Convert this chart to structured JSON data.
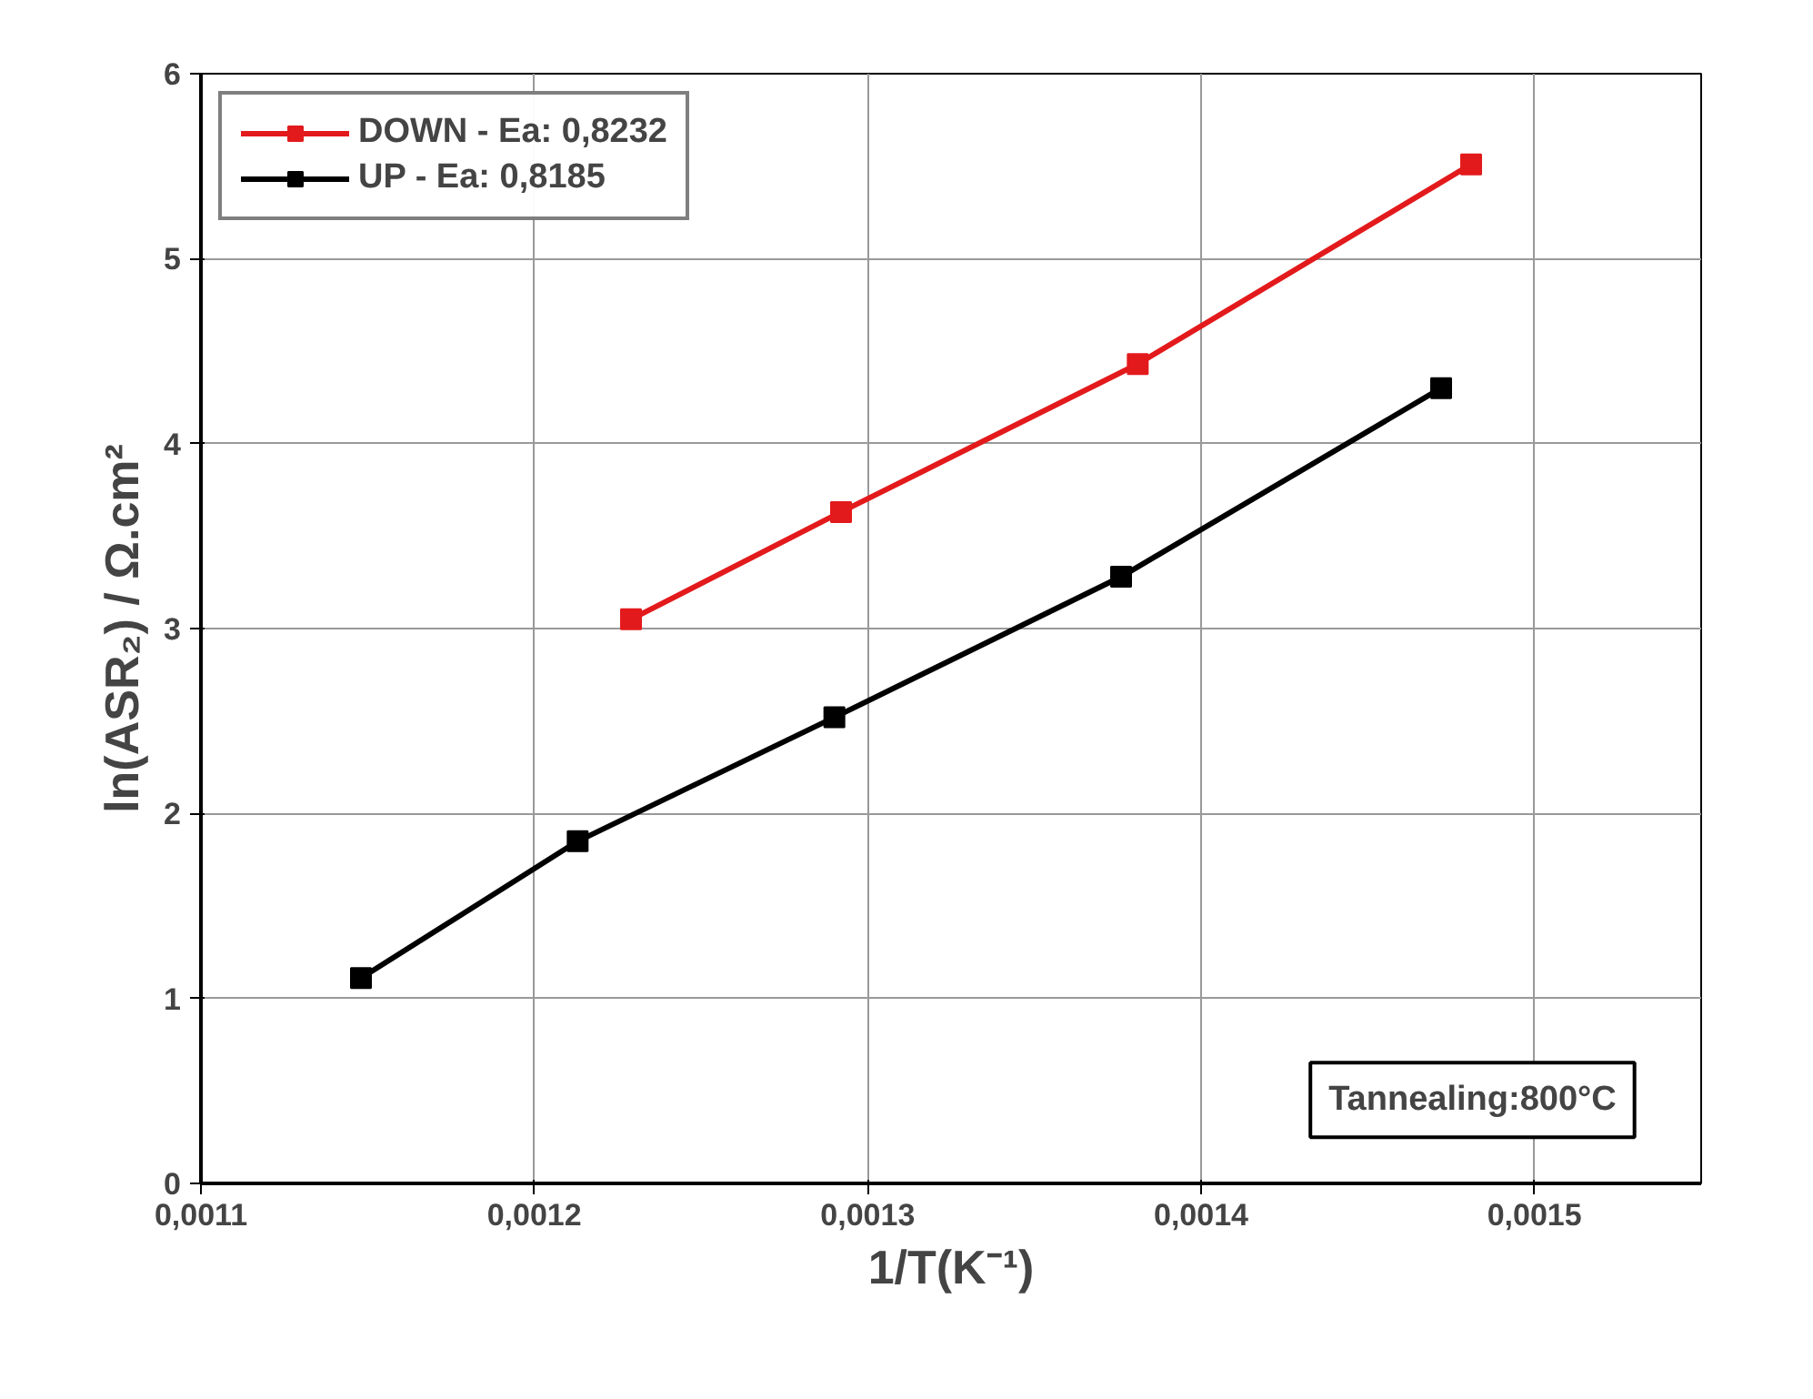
{
  "chart_data": {
    "type": "line",
    "xlabel": "1/T(K⁻¹)",
    "ylabel": "ln(ASR₂) / Ω.cm²",
    "series": [
      {
        "name": "DOWN - Ea: 0,8232",
        "color": "#e31a1c",
        "x": [
          0.001229,
          0.001292,
          0.001381,
          0.001481
        ],
        "values": [
          3.05,
          3.63,
          4.43,
          5.51
        ]
      },
      {
        "name": "UP - Ea: 0,8185",
        "color": "#000000",
        "x": [
          0.001148,
          0.001213,
          0.00129,
          0.001376,
          0.001472
        ],
        "values": [
          1.11,
          1.85,
          2.52,
          3.28,
          4.3
        ]
      }
    ],
    "xlim": [
      0.0011,
      0.00155
    ],
    "ylim": [
      0,
      6
    ],
    "xticks": [
      {
        "value": 0.0011,
        "label": "0,0011"
      },
      {
        "value": 0.0012,
        "label": "0,0012"
      },
      {
        "value": 0.0013,
        "label": "0,0013"
      },
      {
        "value": 0.0014,
        "label": "0,0014"
      },
      {
        "value": 0.0015,
        "label": "0,0015"
      }
    ],
    "yticks": [
      0,
      1,
      2,
      3,
      4,
      5,
      6
    ],
    "grid": true,
    "legend": "top left",
    "marker": "square",
    "line_style": "solid",
    "annotations": [
      "Tannealing:800°C"
    ]
  }
}
